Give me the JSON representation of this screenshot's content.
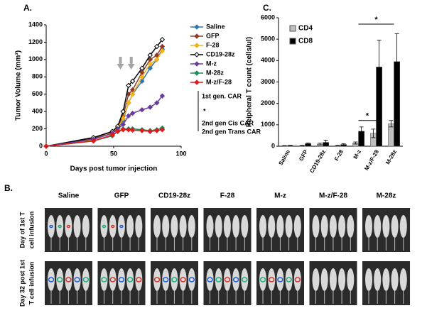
{
  "chart_data": [
    {
      "type": "line",
      "panel_label": "A.",
      "x_label": "Days post tumor injection",
      "y_label": "Tumor Volume (mm³)",
      "xlim": [
        0,
        100
      ],
      "xticks": [
        0,
        50,
        100
      ],
      "ylim": [
        0,
        1400
      ],
      "yticks": [
        0,
        200,
        400,
        600,
        800,
        1000,
        1200,
        1400
      ],
      "x": [
        0,
        35,
        49,
        53,
        57,
        61,
        64,
        71,
        77,
        82,
        86
      ],
      "series": [
        {
          "name": "Saline",
          "color": "#2e75b6",
          "marker_fill": "#2e75b6",
          "values": [
            0,
            80,
            150,
            200,
            300,
            500,
            600,
            750,
            900,
            1000,
            1120
          ]
        },
        {
          "name": "GFP",
          "color": "#8b3a2b",
          "marker_fill": "#8b3a2b",
          "values": [
            0,
            90,
            170,
            220,
            350,
            600,
            650,
            850,
            1000,
            1050,
            1150
          ]
        },
        {
          "name": "F-28",
          "color": "#f2b21a",
          "marker_fill": "#f2b21a",
          "values": [
            0,
            70,
            160,
            210,
            320,
            500,
            600,
            800,
            950,
            1000,
            1100
          ]
        },
        {
          "name": "CD19-28z",
          "color": "#000000",
          "marker_fill": "#ffffff",
          "values": [
            0,
            100,
            170,
            230,
            400,
            700,
            750,
            900,
            1050,
            1150,
            1230
          ]
        },
        {
          "name": "M-z",
          "color": "#6a3d9a",
          "marker_fill": "#6a3d9a",
          "values": [
            0,
            80,
            150,
            200,
            250,
            350,
            380,
            420,
            450,
            500,
            580
          ]
        },
        {
          "name": "M-28z",
          "color": "#1a8a5a",
          "marker_fill": "#1a8a5a",
          "values": [
            0,
            60,
            120,
            170,
            200,
            200,
            200,
            190,
            180,
            190,
            210
          ]
        },
        {
          "name": "M-z/F-28",
          "color": "#e31a1c",
          "marker_fill": "#e31a1c",
          "values": [
            0,
            60,
            130,
            170,
            190,
            190,
            185,
            180,
            170,
            180,
            190
          ]
        }
      ],
      "arrows": [
        55,
        63
      ],
      "annotations": [
        "1st gen. CAR",
        "*",
        "2nd gen Cis  CAR",
        "2nd gen Trans CAR"
      ]
    },
    {
      "type": "bar",
      "panel_label": "C.",
      "y_label": "Peipheral T count (cells/ul)",
      "categories": [
        "Saline",
        "GFP",
        "CD19-28z",
        "F-28",
        "M-z",
        "M-z/F-28",
        "M-28z"
      ],
      "ylim": [
        0,
        6000
      ],
      "yticks": [
        0,
        1000,
        2000,
        3000,
        4000,
        5000,
        6000
      ],
      "series": [
        {
          "name": "CD4",
          "color": "#bfbfbf",
          "values": [
            20,
            30,
            100,
            30,
            150,
            600,
            1050
          ],
          "errors": [
            10,
            10,
            40,
            10,
            50,
            200,
            150
          ]
        },
        {
          "name": "CD8",
          "color": "#000000",
          "values": [
            30,
            120,
            180,
            80,
            700,
            3700,
            3950
          ],
          "errors": [
            10,
            30,
            100,
            30,
            200,
            1250,
            1300
          ]
        }
      ],
      "significance": [
        {
          "text": "*",
          "between": [
            "M-z",
            "M-z/F-28"
          ],
          "y": 1200
        },
        {
          "text": "*",
          "between": [
            "M-z",
            "M-28z"
          ],
          "y": 5700
        }
      ]
    }
  ],
  "panel_b": {
    "label": "B.",
    "columns": [
      "Saline",
      "GFP",
      "CD19-28z",
      "F-28",
      "M-z",
      "M-z/F-28",
      "M-28z"
    ],
    "rows": [
      [
        "Day of 1st T",
        "cell infusion"
      ],
      [
        "Day  32 post 1st",
        "T cell infusion"
      ]
    ]
  }
}
